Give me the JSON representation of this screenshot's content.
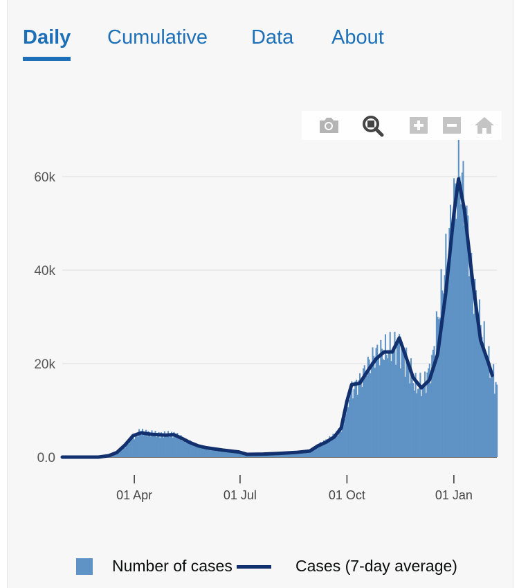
{
  "tabs": [
    {
      "label": "Daily",
      "active": true
    },
    {
      "label": "Cumulative",
      "active": false
    },
    {
      "label": "Data",
      "active": false
    },
    {
      "label": "About",
      "active": false
    }
  ],
  "toolbar": {
    "icons": [
      "camera-icon",
      "zoom-icon",
      "zoom-in-icon",
      "zoom-out-icon",
      "reset-home-icon"
    ],
    "active_icon": "zoom-icon"
  },
  "colors": {
    "bars": "#5f92c5",
    "line": "#12306e",
    "tab_accent": "#1d70b8",
    "grid": "#e6e6e6"
  },
  "chart_data": {
    "type": "bar",
    "x_ticks": [
      "01 Apr",
      "01 Jul",
      "01 Oct",
      "01 Jan"
    ],
    "y_ticks": [
      "0.0",
      "20k",
      "40k",
      "60k"
    ],
    "ylim": [
      0,
      68000
    ],
    "grid": true,
    "legend_position": "bottom",
    "series": [
      {
        "name": "Number of cases",
        "type": "bar",
        "points": [
          [
            "2020-01-30",
            0
          ],
          [
            "2020-02-15",
            10
          ],
          [
            "2020-03-01",
            40
          ],
          [
            "2020-03-08",
            120
          ],
          [
            "2020-03-15",
            500
          ],
          [
            "2020-03-22",
            1800
          ],
          [
            "2020-03-29",
            3800
          ],
          [
            "2020-04-05",
            5300
          ],
          [
            "2020-04-12",
            5200
          ],
          [
            "2020-04-19",
            4900
          ],
          [
            "2020-04-26",
            4800
          ],
          [
            "2020-05-03",
            5000
          ],
          [
            "2020-05-10",
            4300
          ],
          [
            "2020-05-17",
            3300
          ],
          [
            "2020-05-24",
            2600
          ],
          [
            "2020-05-31",
            2000
          ],
          [
            "2020-06-07",
            1600
          ],
          [
            "2020-06-14",
            1400
          ],
          [
            "2020-06-21",
            1200
          ],
          [
            "2020-06-28",
            900
          ],
          [
            "2020-07-05",
            700
          ],
          [
            "2020-07-19",
            700
          ],
          [
            "2020-08-02",
            800
          ],
          [
            "2020-08-16",
            1000
          ],
          [
            "2020-08-30",
            1300
          ],
          [
            "2020-09-06",
            2500
          ],
          [
            "2020-09-13",
            3500
          ],
          [
            "2020-09-20",
            4500
          ],
          [
            "2020-09-27",
            6500
          ],
          [
            "2020-10-04",
            14000
          ],
          [
            "2020-10-11",
            16000
          ],
          [
            "2020-10-18",
            19000
          ],
          [
            "2020-10-25",
            22000
          ],
          [
            "2020-11-01",
            22500
          ],
          [
            "2020-11-08",
            23000
          ],
          [
            "2020-11-15",
            24000
          ],
          [
            "2020-11-22",
            20000
          ],
          [
            "2020-11-29",
            15000
          ],
          [
            "2020-12-06",
            15500
          ],
          [
            "2020-12-13",
            20000
          ],
          [
            "2020-12-20",
            33000
          ],
          [
            "2020-12-27",
            45000
          ],
          [
            "2021-01-03",
            58000
          ],
          [
            "2021-01-06",
            62000
          ],
          [
            "2021-01-10",
            55000
          ],
          [
            "2021-01-17",
            38000
          ],
          [
            "2021-01-24",
            28000
          ],
          [
            "2021-01-31",
            20000
          ],
          [
            "2021-02-07",
            15000
          ]
        ]
      },
      {
        "name": "Cases (7-day average)",
        "type": "line",
        "points": [
          [
            "2020-01-30",
            0
          ],
          [
            "2020-02-15",
            0
          ],
          [
            "2020-03-01",
            0
          ],
          [
            "2020-03-10",
            300
          ],
          [
            "2020-03-17",
            1000
          ],
          [
            "2020-03-24",
            2600
          ],
          [
            "2020-03-31",
            4600
          ],
          [
            "2020-04-07",
            5200
          ],
          [
            "2020-04-14",
            4900
          ],
          [
            "2020-04-21",
            4800
          ],
          [
            "2020-04-28",
            4700
          ],
          [
            "2020-05-05",
            4800
          ],
          [
            "2020-05-12",
            4000
          ],
          [
            "2020-05-19",
            3100
          ],
          [
            "2020-05-26",
            2400
          ],
          [
            "2020-06-02",
            2000
          ],
          [
            "2020-06-16",
            1500
          ],
          [
            "2020-06-30",
            1100
          ],
          [
            "2020-07-07",
            600
          ],
          [
            "2020-07-21",
            650
          ],
          [
            "2020-08-04",
            800
          ],
          [
            "2020-08-18",
            1000
          ],
          [
            "2020-08-30",
            1300
          ],
          [
            "2020-09-06",
            2400
          ],
          [
            "2020-09-13",
            3200
          ],
          [
            "2020-09-20",
            4300
          ],
          [
            "2020-09-26",
            6200
          ],
          [
            "2020-10-01",
            12000
          ],
          [
            "2020-10-05",
            15500
          ],
          [
            "2020-10-12",
            15800
          ],
          [
            "2020-10-19",
            18500
          ],
          [
            "2020-10-26",
            21000
          ],
          [
            "2020-11-02",
            22500
          ],
          [
            "2020-11-09",
            22500
          ],
          [
            "2020-11-15",
            25500
          ],
          [
            "2020-11-20",
            22000
          ],
          [
            "2020-11-27",
            17000
          ],
          [
            "2020-12-04",
            14800
          ],
          [
            "2020-12-11",
            16500
          ],
          [
            "2020-12-18",
            22000
          ],
          [
            "2020-12-25",
            35000
          ],
          [
            "2021-01-01",
            52000
          ],
          [
            "2021-01-05",
            59500
          ],
          [
            "2021-01-10",
            53000
          ],
          [
            "2021-01-17",
            38000
          ],
          [
            "2021-01-24",
            25000
          ],
          [
            "2021-01-31",
            20000
          ],
          [
            "2021-02-03",
            17500
          ]
        ]
      }
    ]
  }
}
